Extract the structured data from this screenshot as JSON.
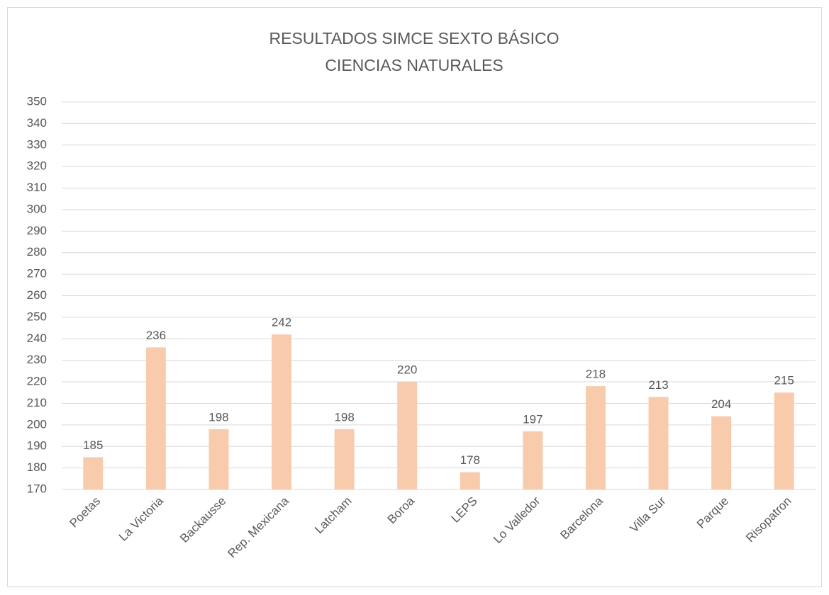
{
  "chart_data": {
    "type": "bar",
    "title": [
      "RESULTADOS SIMCE SEXTO BÁSICO",
      "CIENCIAS NATURALES"
    ],
    "categories": [
      "Poetas",
      "La Victoria",
      "Backausse",
      "Rep. Mexicana",
      "Latcham",
      "Boroa",
      "LEPS",
      "Lo Valledor",
      "Barcelona",
      "Villa Sur",
      "Parque",
      "Risopatron"
    ],
    "values": [
      185,
      236,
      198,
      242,
      198,
      220,
      178,
      197,
      218,
      213,
      204,
      215
    ],
    "color": "#f8cbad",
    "ylim": [
      170,
      350
    ],
    "yticks": [
      170,
      180,
      190,
      200,
      210,
      220,
      230,
      240,
      250,
      260,
      270,
      280,
      290,
      300,
      310,
      320,
      330,
      340,
      350
    ],
    "grid": true
  }
}
